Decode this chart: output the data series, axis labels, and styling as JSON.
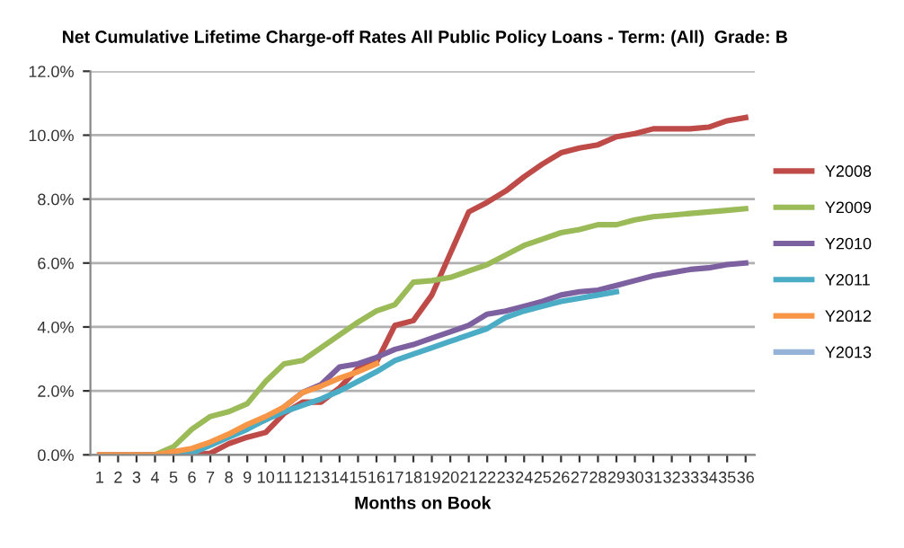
{
  "chart_data": {
    "type": "line",
    "title": "Net Cumulative Lifetime Charge-off Rates All Public Policy Loans - Term: (All)  Grade: B",
    "xlabel": "Months on Book",
    "categories": [
      "1",
      "2",
      "3",
      "4",
      "5",
      "6",
      "7",
      "8",
      "9",
      "10",
      "11",
      "12",
      "13",
      "14",
      "15",
      "16",
      "17",
      "18",
      "19",
      "20",
      "21",
      "22",
      "23",
      "24",
      "25",
      "26",
      "27",
      "28",
      "29",
      "30",
      "31",
      "32",
      "33",
      "34",
      "35",
      "36"
    ],
    "series": [
      {
        "name": "Y2008",
        "color": "#be4b48",
        "values": [
          null,
          null,
          null,
          null,
          0,
          0,
          0.05,
          0.35,
          0.55,
          0.7,
          1.3,
          1.65,
          1.65,
          2.1,
          2.7,
          2.9,
          4.05,
          4.2,
          5.0,
          6.3,
          7.6,
          7.9,
          8.25,
          8.7,
          9.1,
          9.45,
          9.6,
          9.7,
          9.95,
          10.05,
          10.2,
          10.2,
          10.2,
          10.25,
          10.45,
          10.55
        ]
      },
      {
        "name": "Y2009",
        "color": "#9bbb59",
        "values": [
          null,
          null,
          0,
          0,
          0.25,
          0.8,
          1.2,
          1.35,
          1.6,
          2.3,
          2.85,
          2.95,
          3.35,
          3.75,
          4.15,
          4.5,
          4.7,
          5.4,
          5.45,
          5.55,
          5.75,
          5.95,
          6.25,
          6.55,
          6.75,
          6.95,
          7.05,
          7.2,
          7.2,
          7.35,
          7.45,
          7.5,
          7.55,
          7.6,
          7.65,
          7.7
        ]
      },
      {
        "name": "Y2010",
        "color": "#7d60a0",
        "values": [
          0,
          0,
          0,
          0,
          0,
          0.1,
          0.35,
          0.6,
          0.85,
          1.1,
          1.5,
          1.95,
          2.2,
          2.75,
          2.85,
          3.05,
          3.3,
          3.45,
          3.65,
          3.85,
          4.05,
          4.4,
          4.5,
          4.65,
          4.8,
          5.0,
          5.1,
          5.15,
          5.3,
          5.45,
          5.6,
          5.7,
          5.8,
          5.85,
          5.95,
          6.0
        ]
      },
      {
        "name": "Y2011",
        "color": "#4bacc6",
        "values": [
          null,
          null,
          null,
          0,
          0,
          0.05,
          0.3,
          0.55,
          0.8,
          1.1,
          1.35,
          1.55,
          1.75,
          2.0,
          2.3,
          2.6,
          2.95,
          3.15,
          3.35,
          3.55,
          3.75,
          3.95,
          4.3,
          4.5,
          4.65,
          4.8,
          4.9,
          5.0,
          5.1,
          null,
          null,
          null,
          null,
          null,
          null,
          null
        ]
      },
      {
        "name": "Y2012",
        "color": "#f79646",
        "values": [
          0,
          0,
          0,
          0,
          0.1,
          0.2,
          0.4,
          0.65,
          0.95,
          1.2,
          1.5,
          1.95,
          2.15,
          2.4,
          2.6,
          2.85,
          null,
          null,
          null,
          null,
          null,
          null,
          null,
          null,
          null,
          null,
          null,
          null,
          null,
          null,
          null,
          null,
          null,
          null,
          null,
          null
        ]
      },
      {
        "name": "Y2013",
        "color": "#95b3d7",
        "values": [
          null,
          null,
          null,
          null,
          null,
          null,
          null,
          null,
          null,
          null,
          null,
          null,
          null,
          null,
          null,
          null,
          null,
          null,
          null,
          null,
          null,
          null,
          null,
          null,
          null,
          null,
          null,
          null,
          null,
          null,
          null,
          null,
          null,
          null,
          null,
          null
        ]
      }
    ],
    "ylim": [
      0,
      12
    ],
    "yticks": [
      {
        "value": 0,
        "label": "0.0%"
      },
      {
        "value": 2,
        "label": "2.0%"
      },
      {
        "value": 4,
        "label": "4.0%"
      },
      {
        "value": 6,
        "label": "6.0%"
      },
      {
        "value": 8,
        "label": "8.0%"
      },
      {
        "value": 10,
        "label": "10.0%"
      },
      {
        "value": 12,
        "label": "12.0%"
      }
    ],
    "grid": "y",
    "legend": "right",
    "marker": "none",
    "line_style": "solid"
  }
}
